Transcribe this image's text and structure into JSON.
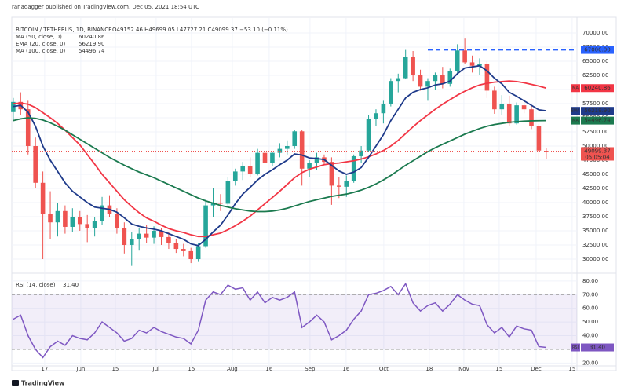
{
  "header": {
    "published": "ranadagger published on TradingView.com, Dec 05, 2021 18:54 UTC"
  },
  "footer": {
    "logo": "TradingView"
  },
  "chart_data": [
    {
      "type": "candlestick",
      "symbol": "BITCOIN / TETHERUS, 1D, BINANCE",
      "ohlc_text": "O49152.46 H49699.05 L47727.21 C49099.37 −53.10 (−0.11%)",
      "up_color": "#26a69a",
      "down_color": "#ef5350",
      "open": [
        56000,
        57800,
        56500,
        50000,
        43500,
        38000,
        36500,
        38500,
        35700,
        37500,
        36200,
        35500,
        36800,
        39500,
        38000,
        35500,
        32500,
        33600,
        34500,
        33800,
        35000,
        33900,
        32800,
        31800,
        31400,
        30000,
        32300,
        39500,
        40000,
        39800,
        43800,
        45500,
        46500,
        45000,
        48800,
        47000,
        48800,
        49500,
        50000,
        52600,
        46000,
        47000,
        48000,
        47200,
        43000,
        42800,
        43800,
        48200,
        49200,
        54800,
        55800,
        57500,
        61500,
        62000,
        65800,
        62500,
        60500,
        61500,
        62500,
        61000,
        63200,
        66900,
        64800,
        64200,
        64500,
        59800,
        56500,
        57500,
        54000,
        57200,
        56500,
        53600,
        49152.46
      ],
      "high": [
        58500,
        59500,
        58000,
        51500,
        45500,
        42000,
        40000,
        39500,
        39000,
        38500,
        37800,
        37500,
        41000,
        41300,
        39000,
        36500,
        34800,
        35500,
        36000,
        35800,
        35500,
        34800,
        33500,
        32700,
        32000,
        32800,
        40500,
        42500,
        41500,
        44500,
        46000,
        47200,
        48000,
        49500,
        49800,
        49000,
        50500,
        51000,
        52900,
        52900,
        47500,
        48800,
        48500,
        48000,
        44500,
        44800,
        48500,
        50000,
        55500,
        56500,
        58000,
        62000,
        62800,
        67000,
        66800,
        63500,
        62000,
        63000,
        64000,
        63700,
        68000,
        69000,
        66000,
        65500,
        65000,
        60500,
        59000,
        58900,
        57700,
        58300,
        57200,
        53900,
        49699.05
      ],
      "low": [
        54500,
        55500,
        48500,
        42500,
        30000,
        33500,
        34000,
        34500,
        34800,
        35000,
        33000,
        34000,
        36000,
        37500,
        34500,
        31000,
        28800,
        31500,
        32800,
        32700,
        32500,
        31800,
        31100,
        30500,
        29300,
        29500,
        32000,
        37500,
        38500,
        39500,
        43000,
        44000,
        44500,
        44800,
        46500,
        46500,
        48000,
        48500,
        49500,
        43000,
        44500,
        45800,
        46800,
        39600,
        40800,
        41000,
        43500,
        47000,
        49000,
        53500,
        54000,
        57000,
        59500,
        61800,
        61500,
        59800,
        58000,
        60000,
        60200,
        60500,
        62500,
        64500,
        63000,
        62500,
        58500,
        55700,
        55500,
        53500,
        53800,
        55800,
        53000,
        42000,
        47727.21
      ],
      "close": [
        57800,
        56500,
        50000,
        43500,
        38000,
        36500,
        38500,
        35700,
        37500,
        36200,
        35500,
        36800,
        39500,
        38000,
        35500,
        32500,
        33600,
        34500,
        33800,
        35000,
        33900,
        32800,
        31800,
        31400,
        30000,
        32300,
        39500,
        40000,
        39800,
        43800,
        45500,
        46500,
        45000,
        48800,
        47000,
        48800,
        49500,
        50000,
        52600,
        46000,
        47000,
        48000,
        47200,
        43000,
        42800,
        43800,
        48200,
        49200,
        54800,
        55800,
        57500,
        61500,
        62000,
        65800,
        62500,
        60500,
        61500,
        62500,
        61000,
        63200,
        66900,
        64800,
        64200,
        64500,
        59800,
        56500,
        57500,
        54000,
        57200,
        56500,
        53600,
        49200,
        49099.37
      ],
      "last_price_label": "49099.37",
      "countdown": "05:05:04",
      "lines": [
        {
          "name": "MA (50, close, 0)",
          "tag": "MA",
          "last_label": "60240.86",
          "color": "#f23645",
          "values": [
            57500,
            57600,
            57400,
            56800,
            55900,
            55000,
            54000,
            52800,
            51500,
            50200,
            48500,
            46800,
            45000,
            43500,
            42000,
            40500,
            39300,
            38200,
            37300,
            36700,
            36000,
            35400,
            35000,
            34700,
            34300,
            34000,
            34000,
            34300,
            34600,
            35200,
            35900,
            36700,
            37600,
            38700,
            39800,
            40900,
            42000,
            43200,
            44400,
            45300,
            45900,
            46300,
            46700,
            46900,
            47000,
            47200,
            47400,
            47700,
            48100,
            48600,
            49200,
            50000,
            51000,
            52200,
            53400,
            54500,
            55500,
            56500,
            57400,
            58200,
            59000,
            59700,
            60300,
            60800,
            61100,
            61300,
            61400,
            61500,
            61400,
            61200,
            60900,
            60600,
            60240.86
          ]
        },
        {
          "name": "EMA (20, close, 0)",
          "tag": "EMA",
          "last_label": "56219.90",
          "color": "#1e3a8a",
          "values": [
            57000,
            57200,
            56000,
            53500,
            50000,
            47500,
            45500,
            43500,
            42000,
            41000,
            40000,
            39200,
            39000,
            38800,
            38300,
            37300,
            36200,
            35800,
            35500,
            35300,
            35000,
            34500,
            34000,
            33500,
            32700,
            32400,
            33500,
            34800,
            36000,
            37800,
            39800,
            41500,
            42700,
            44000,
            45000,
            45800,
            46700,
            47500,
            48600,
            48400,
            47900,
            47800,
            47600,
            46600,
            45600,
            45000,
            45400,
            46200,
            48000,
            50000,
            52000,
            54500,
            56500,
            58500,
            59500,
            60000,
            60300,
            60800,
            61000,
            61500,
            62800,
            63800,
            64000,
            64200,
            63300,
            62000,
            61000,
            59500,
            58800,
            58000,
            57200,
            56400,
            56219.9
          ]
        },
        {
          "name": "MA (100, close, 0)",
          "tag": "MA",
          "last_label": "54496.74",
          "color": "#1b7a4f",
          "values": [
            54500,
            54800,
            55000,
            54900,
            54600,
            54100,
            53500,
            52800,
            52000,
            51200,
            50400,
            49600,
            48800,
            48000,
            47300,
            46600,
            46000,
            45400,
            44900,
            44400,
            43800,
            43200,
            42600,
            42000,
            41400,
            40800,
            40300,
            39900,
            39500,
            39200,
            38900,
            38700,
            38500,
            38400,
            38400,
            38500,
            38700,
            39000,
            39400,
            39800,
            40200,
            40500,
            40800,
            41100,
            41300,
            41500,
            41800,
            42200,
            42700,
            43300,
            44000,
            44800,
            45700,
            46600,
            47400,
            48200,
            49000,
            49700,
            50300,
            50900,
            51500,
            52100,
            52600,
            53100,
            53500,
            53800,
            54000,
            54200,
            54300,
            54400,
            54450,
            54480,
            54496.74
          ]
        }
      ],
      "hline": {
        "value": 67000,
        "label": "67000.00",
        "color": "#2962ff"
      },
      "ylim": [
        27780,
        71940
      ],
      "yticks": [
        {
          "value": 30000,
          "label": "30000.00"
        },
        {
          "value": 32500,
          "label": "32500.00"
        },
        {
          "value": 35000,
          "label": "35000.00"
        },
        {
          "value": 37500,
          "label": "37500.00"
        },
        {
          "value": 40000,
          "label": "40000.00"
        },
        {
          "value": 42500,
          "label": "42500.00"
        },
        {
          "value": 45000,
          "label": "45000.00"
        },
        {
          "value": 47500,
          "label": "47500.00"
        },
        {
          "value": 50000,
          "label": "50000.00"
        },
        {
          "value": 52500,
          "label": "52500.00"
        },
        {
          "value": 55000,
          "label": "55000.00"
        },
        {
          "value": 57500,
          "label": "57500.00"
        },
        {
          "value": 60000,
          "label": "60000.00"
        },
        {
          "value": 62500,
          "label": "62500.00"
        },
        {
          "value": 65000,
          "label": "65000.00"
        },
        {
          "value": 67500,
          "label": "67500.00"
        },
        {
          "value": 70000,
          "label": "70000.00"
        }
      ],
      "xlim": [
        -0.2,
        76.15
      ],
      "xticks": [
        {
          "value": 4.24,
          "label": "17"
        },
        {
          "value": 9.12,
          "label": "Jun"
        },
        {
          "value": 13.79,
          "label": "15"
        },
        {
          "value": 19.3,
          "label": "Jul"
        },
        {
          "value": 24.07,
          "label": "15"
        },
        {
          "value": 29.59,
          "label": "Aug"
        },
        {
          "value": 34.57,
          "label": "16"
        },
        {
          "value": 40.08,
          "label": "Sep"
        },
        {
          "value": 44.96,
          "label": "16"
        },
        {
          "value": 50.05,
          "label": "Oct"
        },
        {
          "value": 56.2,
          "label": "18"
        },
        {
          "value": 60.87,
          "label": "Nov"
        },
        {
          "value": 65.64,
          "label": "15"
        },
        {
          "value": 70.63,
          "label": "Dec"
        },
        {
          "value": 75.5,
          "label": "15"
        }
      ],
      "grid": true
    },
    {
      "type": "line",
      "title": "RSI (14, close)",
      "last_label": "31.40",
      "tag": "RSI",
      "color": "#7e57c2",
      "values": [
        52,
        55,
        40,
        30,
        24,
        32,
        36,
        33,
        40,
        38,
        37,
        42,
        50,
        46,
        42,
        36,
        38,
        44,
        42,
        46,
        43,
        41,
        39,
        38,
        34,
        44,
        66,
        72,
        70,
        77,
        74,
        75,
        66,
        72,
        64,
        68,
        66,
        68,
        72,
        46,
        50,
        55,
        50,
        37,
        40,
        44,
        52,
        58,
        70,
        71,
        73,
        76,
        70,
        78,
        64,
        58,
        62,
        64,
        58,
        63,
        70,
        66,
        63,
        62,
        48,
        42,
        46,
        39,
        47,
        45,
        44,
        32,
        31.4
      ],
      "band": [
        30,
        70
      ],
      "ylim": [
        18.5,
        84.5
      ],
      "yticks": [
        {
          "value": 20,
          "label": "20.00"
        },
        {
          "value": 30,
          "label": "30.00"
        },
        {
          "value": 40,
          "label": "40.00"
        },
        {
          "value": 50,
          "label": "50.00"
        },
        {
          "value": 60,
          "label": "60.00"
        },
        {
          "value": 70,
          "label": "70.00"
        },
        {
          "value": 80,
          "label": "80.00"
        }
      ],
      "grid": true
    }
  ]
}
